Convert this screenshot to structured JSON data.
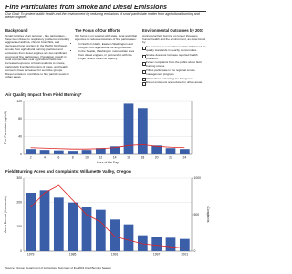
{
  "header": {
    "title": "Fine Particulates from Smoke and Diesel Emissions",
    "goal": "Our Goal: To protect public health and the environment by reducing emissions of small particulate matter from agricultural burning and diesel engines."
  },
  "background": {
    "heading": "Background",
    "text": "Small particles of air pollution - fine particulates - have been linked to respiratory problems, including aggravated asthma, chronic bronchitis, and decreased lung function. In the Pacific Northwest, smoke from agricultural burning practices and emissions from diesel engines are two significant sources of fine particulates. Population growth in rural communities near agricultural fields has increased exposure of local residents to smoke, particularly from field burning of grass, and health concerns have increased for sensitive groups. Diesel emissions contribute to fine particle levels in urban areas."
  },
  "focus": {
    "heading": "The Focus of Our Efforts",
    "intro": "Our focus is on working with state, local and tribal agencies to reduce emissions of fine particulates:",
    "items": [
      "In Northern Idaho, Eastern Washington and Oregon from agricultural burning practices.",
      "In the Seattle, Washington metropolitan area from diesel engines, in partnership with the Puget Sound Clean Air Agency."
    ]
  },
  "outcomes": {
    "heading": "Environmental Outcomes by 2007",
    "items": [
      "Agricultural field burning no longer threatens human health and the environment, as determined by:",
      "No increase in exceedances of health-based air quality standards in nearby communities.",
      "Smoke does not increase reported health problems.",
      "Fewer complaints from the public about field burning smoke.",
      "Tribes participate in the regional smoke management program.",
      "Alternatives to burning are being used.",
      "Diesel emissions are reduced in urban areas."
    ]
  },
  "chart_data": [
    {
      "type": "bar",
      "title": "Air Quality Impact from Field Burning*",
      "x_label": "Hour of the Day",
      "y_label": "Fine Particulate (ug/m3)",
      "categories": [
        "2",
        "4",
        "6",
        "8",
        "10",
        "12",
        "14",
        "16",
        "18",
        "20",
        "22",
        "24"
      ],
      "series": [
        {
          "color": "#3b5ea8",
          "values": [
            12,
            10,
            9,
            8,
            10,
            14,
            18,
            115,
            105,
            20,
            14,
            12
          ]
        },
        {
          "type": "line",
          "color": "#d22",
          "values": [
            15,
            14,
            13,
            12,
            12,
            13,
            15,
            20,
            22,
            18,
            16,
            15
          ]
        }
      ],
      "ylim": [
        0,
        120
      ],
      "yticks": [
        0,
        40,
        80,
        120
      ],
      "grid": true
    },
    {
      "type": "bar",
      "title": "Field Burning Acres and Complaints: Willamette Valley, Oregon",
      "y_label": "Acres Burned (thousands)",
      "y2_label": "Complaints",
      "categories": [
        "1979",
        null,
        null,
        "1985",
        null,
        null,
        "1991",
        null,
        null,
        "1997",
        null,
        "2001"
      ],
      "series": [
        {
          "color": "#3b5ea8",
          "values": [
            240,
            250,
            220,
            200,
            180,
            170,
            130,
            110,
            65,
            60,
            55,
            50
          ]
        },
        {
          "type": "line",
          "axis": "y2",
          "color": "#d22",
          "values": [
            600,
            800,
            900,
            700,
            500,
            400,
            200,
            150,
            100,
            80,
            60,
            40
          ]
        }
      ],
      "ylim": [
        0,
        300
      ],
      "yticks": [
        0,
        100,
        200,
        300
      ],
      "y2lim": [
        0,
        1000
      ],
      "y2ticks": [
        0,
        500,
        1000
      ],
      "grid": true
    }
  ],
  "source": "Source: Oregon Department of Agriculture, Summary of the 2001 Field Burning Season"
}
